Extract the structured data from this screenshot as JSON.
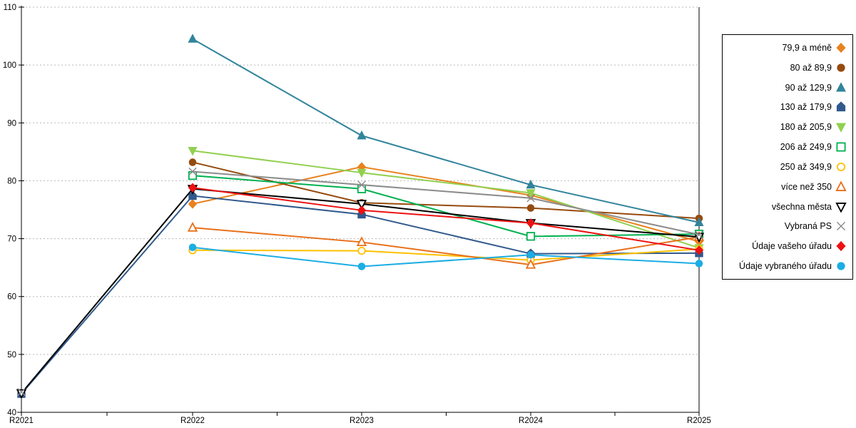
{
  "chart_data": {
    "type": "line",
    "title": "",
    "xlabel": "",
    "ylabel": "",
    "categories": [
      "R2021",
      "R2022",
      "R2023",
      "R2024",
      "R2025"
    ],
    "ylim": [
      40,
      110
    ],
    "ytick_step": 10,
    "grid": "horizontal-dashed",
    "grid_color": "#b8b8b8",
    "axis_color": "#000000",
    "legend_position": "right-outside",
    "series": [
      {
        "name": "79,9 a méně",
        "marker": "diamond",
        "fill": "solid",
        "color": "#E8821E",
        "values": [
          null,
          76.0,
          82.4,
          77.5,
          69.5
        ]
      },
      {
        "name": "80 až 89,9",
        "marker": "circle",
        "fill": "solid",
        "color": "#964B0E",
        "values": [
          null,
          83.2,
          76.2,
          75.3,
          73.5
        ]
      },
      {
        "name": "90 až 129,9",
        "marker": "triangle-up",
        "fill": "solid",
        "color": "#31849B",
        "values": [
          null,
          104.5,
          87.8,
          79.3,
          72.8
        ]
      },
      {
        "name": "130 až 179,9",
        "marker": "pentagon",
        "fill": "solid",
        "color": "#31598C",
        "values": [
          43.2,
          77.4,
          74.2,
          67.4,
          67.5
        ]
      },
      {
        "name": "180 až 205,9",
        "marker": "triangle-down",
        "fill": "solid",
        "color": "#92D050",
        "values": [
          null,
          85.2,
          81.4,
          77.9,
          68.4
        ]
      },
      {
        "name": "206 až 249,9",
        "marker": "square",
        "fill": "hollow",
        "color": "#00B050",
        "values": [
          null,
          80.9,
          78.6,
          70.4,
          70.8
        ]
      },
      {
        "name": "250 až 349,9",
        "marker": "circle",
        "fill": "hollow",
        "color": "#FFC000",
        "values": [
          null,
          68.0,
          67.9,
          66.3,
          68.2
        ]
      },
      {
        "name": "více než 350",
        "marker": "triangle-up",
        "fill": "hollow",
        "color": "#E8701A",
        "values": [
          null,
          71.9,
          69.4,
          65.5,
          70.3
        ]
      },
      {
        "name": "všechna města",
        "marker": "triangle-down",
        "fill": "hollow",
        "color": "#000000",
        "values": [
          43.3,
          78.6,
          76.0,
          72.7,
          70.3
        ]
      },
      {
        "name": "Vybraná PS",
        "marker": "x",
        "fill": "stroke",
        "color": "#8C8C8C",
        "values": [
          43.5,
          81.6,
          79.3,
          77.0,
          70.7
        ],
        "line_start": 1
      },
      {
        "name": "Údaje vašeho úřadu",
        "marker": "diamond",
        "fill": "solid",
        "color": "#ED1111",
        "values": [
          null,
          78.8,
          74.9,
          72.7,
          68.0
        ]
      },
      {
        "name": "Údaje vybraného úřadu",
        "marker": "circle",
        "fill": "solid",
        "color": "#1CADE4",
        "values": [
          null,
          68.5,
          65.2,
          67.2,
          65.7
        ]
      }
    ]
  }
}
